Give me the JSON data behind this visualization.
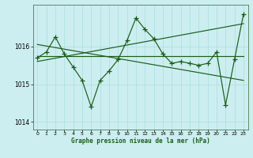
{
  "background_color": "#cceef0",
  "grid_color": "#aadddd",
  "line_color": "#1a5c1a",
  "xlabel": "Graphe pression niveau de la mer (hPa)",
  "ylim": [
    1013.8,
    1017.1
  ],
  "xlim": [
    -0.5,
    23.5
  ],
  "yticks": [
    1014,
    1015,
    1016
  ],
  "xticks": [
    0,
    1,
    2,
    3,
    4,
    5,
    6,
    7,
    8,
    9,
    10,
    11,
    12,
    13,
    14,
    15,
    16,
    17,
    18,
    19,
    20,
    21,
    22,
    23
  ],
  "series1_x": [
    0,
    1,
    2,
    3,
    4,
    5,
    6,
    7,
    8,
    9,
    10,
    11,
    12,
    13,
    14,
    15,
    16,
    17,
    18,
    19,
    20,
    21,
    22,
    23
  ],
  "series1_y": [
    1015.7,
    1015.85,
    1016.25,
    1015.8,
    1015.45,
    1015.1,
    1014.4,
    1015.1,
    1015.35,
    1015.65,
    1016.15,
    1016.75,
    1016.45,
    1016.2,
    1015.8,
    1015.55,
    1015.6,
    1015.55,
    1015.5,
    1015.55,
    1015.85,
    1014.45,
    1015.65,
    1016.85
  ],
  "trend1_x": [
    0,
    23
  ],
  "trend1_y": [
    1016.05,
    1015.1
  ],
  "trend2_x": [
    0,
    23
  ],
  "trend2_y": [
    1015.6,
    1016.6
  ],
  "trend3_x": [
    0,
    23
  ],
  "trend3_y": [
    1015.75,
    1015.75
  ]
}
